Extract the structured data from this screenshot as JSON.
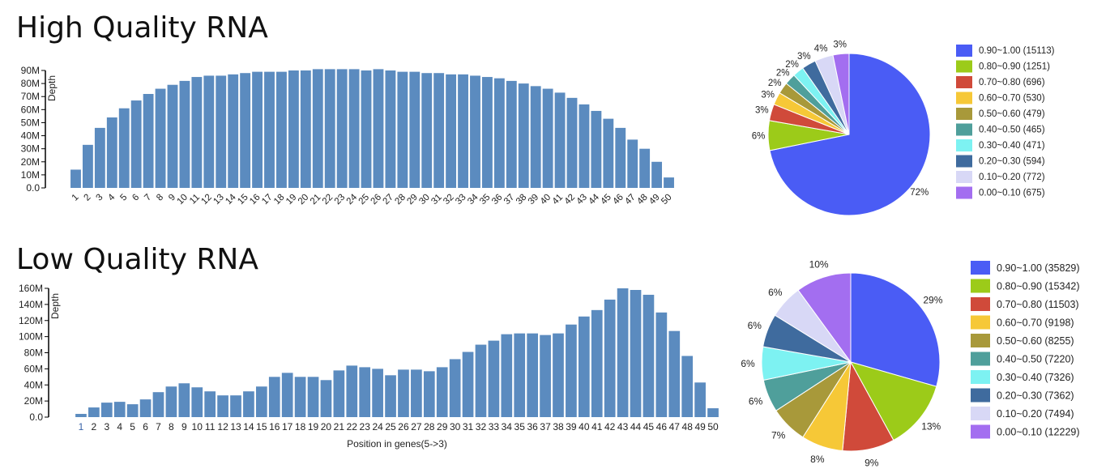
{
  "panels": [
    {
      "title": "High Quality RNA",
      "bar": {
        "type": "bar",
        "ylabel": "Depth",
        "xlabel": "",
        "yticks": [
          "0.0",
          "10M",
          "20M",
          "30M",
          "40M",
          "50M",
          "60M",
          "70M",
          "80M",
          "90M"
        ],
        "ylim": [
          0,
          90
        ],
        "categories": [
          "1",
          "2",
          "3",
          "4",
          "5",
          "6",
          "7",
          "8",
          "9",
          "10",
          "11",
          "12",
          "13",
          "14",
          "15",
          "16",
          "17",
          "18",
          "19",
          "20",
          "21",
          "22",
          "23",
          "24",
          "25",
          "26",
          "27",
          "28",
          "29",
          "30",
          "31",
          "32",
          "33",
          "34",
          "35",
          "36",
          "37",
          "38",
          "39",
          "40",
          "41",
          "42",
          "43",
          "44",
          "45",
          "46",
          "47",
          "48",
          "49",
          "50"
        ],
        "values": [
          14,
          33,
          46,
          54,
          61,
          67,
          72,
          76,
          79,
          82,
          85,
          86,
          86,
          87,
          88,
          89,
          89,
          89,
          90,
          90,
          91,
          91,
          91,
          91,
          90,
          91,
          90,
          89,
          89,
          88,
          88,
          87,
          87,
          86,
          85,
          84,
          82,
          80,
          78,
          76,
          73,
          69,
          64,
          59,
          53,
          46,
          37,
          30,
          20,
          8
        ]
      },
      "pie": {
        "type": "pie",
        "legend": [
          "0.90~1.00 (15113)",
          "0.80~0.90 (1251)",
          "0.70~0.80 (696)",
          "0.60~0.70 (530)",
          "0.50~0.60 (479)",
          "0.40~0.50 (465)",
          "0.30~0.40 (471)",
          "0.20~0.30 (594)",
          "0.10~0.20 (772)",
          "0.00~0.10 (675)"
        ],
        "values": [
          15113,
          1251,
          696,
          530,
          479,
          465,
          471,
          594,
          772,
          675
        ],
        "labels": [
          "72%",
          "6%",
          "3%",
          "3%",
          "2%",
          "2%",
          "2%",
          "3%",
          "4%",
          "3%"
        ]
      }
    },
    {
      "title": "Low Quality RNA",
      "bar": {
        "type": "bar",
        "ylabel": "Depth",
        "xlabel": "Position in genes(5->3)",
        "yticks": [
          "0.0",
          "20M",
          "40M",
          "60M",
          "80M",
          "100M",
          "120M",
          "140M",
          "160M"
        ],
        "ylim": [
          0,
          160
        ],
        "categories": [
          "1",
          "2",
          "3",
          "4",
          "5",
          "6",
          "7",
          "8",
          "9",
          "10",
          "11",
          "12",
          "13",
          "14",
          "15",
          "16",
          "17",
          "18",
          "19",
          "20",
          "21",
          "22",
          "23",
          "24",
          "25",
          "26",
          "27",
          "28",
          "29",
          "30",
          "31",
          "32",
          "33",
          "34",
          "35",
          "36",
          "37",
          "38",
          "39",
          "40",
          "41",
          "42",
          "43",
          "44",
          "45",
          "46",
          "47",
          "48",
          "49",
          "50"
        ],
        "values": [
          4,
          12,
          18,
          19,
          16,
          22,
          31,
          38,
          42,
          37,
          32,
          27,
          27,
          32,
          38,
          50,
          55,
          50,
          50,
          46,
          58,
          64,
          62,
          60,
          52,
          59,
          59,
          57,
          62,
          72,
          81,
          90,
          95,
          103,
          104,
          104,
          102,
          104,
          115,
          125,
          133,
          146,
          160,
          158,
          152,
          130,
          107,
          76,
          43,
          11
        ]
      },
      "pie": {
        "type": "pie",
        "legend": [
          "0.90~1.00 (35829)",
          "0.80~0.90 (15342)",
          "0.70~0.80 (11503)",
          "0.60~0.70 (9198)",
          "0.50~0.60 (8255)",
          "0.40~0.50 (7220)",
          "0.30~0.40 (7326)",
          "0.20~0.30 (7362)",
          "0.10~0.20 (7494)",
          "0.00~0.10 (12229)"
        ],
        "values": [
          35829,
          15342,
          11503,
          9198,
          8255,
          7220,
          7326,
          7362,
          7494,
          12229
        ],
        "labels": [
          "29%",
          "13%",
          "9%",
          "8%",
          "7%",
          "6%",
          "6%",
          "6%",
          "6%",
          "10%"
        ]
      }
    }
  ],
  "colors": {
    "bar": "#5b8bbf",
    "pie": [
      "#4a5cf5",
      "#9ccb19",
      "#d04a3a",
      "#f6c837",
      "#a8993a",
      "#4f9f9b",
      "#7df2f2",
      "#3f6b9e",
      "#d8d8f6",
      "#a36ef0"
    ]
  }
}
